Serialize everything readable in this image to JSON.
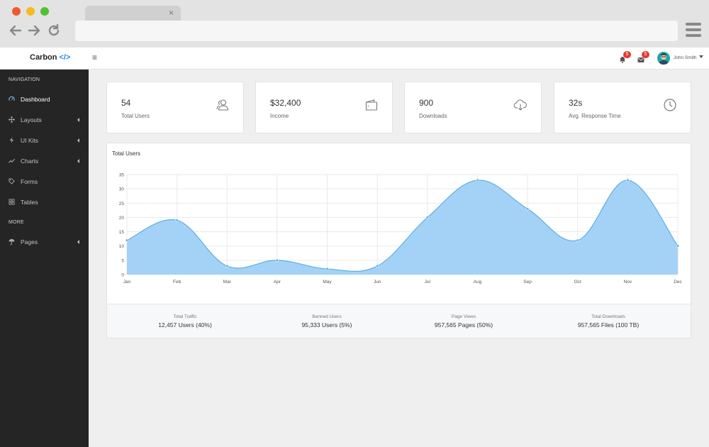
{
  "browser": {
    "tab_close": "×",
    "address": ""
  },
  "header": {
    "brand": "Carbon",
    "brand_code": "</>",
    "hamburger": "≡",
    "notifications_count": "5",
    "messages_count": "5",
    "user_name": "John Smith"
  },
  "sidebar": {
    "headings": [
      "NAVIGATION",
      "MORE"
    ],
    "items": [
      {
        "label": "Dashboard",
        "icon": "dashboard-gauge-icon",
        "active": true,
        "has_submenu": false
      },
      {
        "label": "Layouts",
        "icon": "move-icon",
        "active": false,
        "has_submenu": true
      },
      {
        "label": "UI Kits",
        "icon": "bolt-icon",
        "active": false,
        "has_submenu": true
      },
      {
        "label": "Charts",
        "icon": "line-chart-icon",
        "active": false,
        "has_submenu": true
      },
      {
        "label": "Forms",
        "icon": "tag-icon",
        "active": false,
        "has_submenu": false
      },
      {
        "label": "Tables",
        "icon": "grid-icon",
        "active": false,
        "has_submenu": false
      },
      {
        "label": "Pages",
        "icon": "umbrella-icon",
        "active": false,
        "has_submenu": true
      }
    ]
  },
  "cards": [
    {
      "value": "54",
      "label": "Total Users",
      "icon": "users-icon"
    },
    {
      "value": "$32,400",
      "label": "Income",
      "icon": "wallet-icon"
    },
    {
      "value": "900",
      "label": "Downloads",
      "icon": "cloud-download-icon"
    },
    {
      "value": "32s",
      "label": "Avg. Response Time",
      "icon": "clock-icon"
    }
  ],
  "chart_panel": {
    "title": "Total Users"
  },
  "chart_data": {
    "type": "area",
    "title": "Total Users",
    "categories": [
      "Jan",
      "Feb",
      "Mar",
      "Apr",
      "May",
      "Jun",
      "Jul",
      "Aug",
      "Sep",
      "Oct",
      "Nov",
      "Dec"
    ],
    "values": [
      12,
      19,
      3,
      5,
      2,
      3,
      20,
      33,
      23,
      12,
      33,
      10
    ],
    "y_ticks": [
      0,
      5,
      10,
      15,
      20,
      25,
      30,
      35
    ],
    "ylim": [
      0,
      35
    ],
    "grid": true,
    "fill_color": "#9fd0f5",
    "line_color": "#5aaee6",
    "xlabel": "",
    "ylabel": ""
  },
  "stats": [
    {
      "label": "Total Traffic",
      "value": "12,457 Users (40%)"
    },
    {
      "label": "Banned Users",
      "value": "95,333 Users (5%)"
    },
    {
      "label": "Page Views",
      "value": "957,565 Pages (50%)"
    },
    {
      "label": "Total Downloads",
      "value": "957,565 Files (100 TB)"
    }
  ],
  "colors": {
    "sidebar_bg": "#252525",
    "accent": "#1e88e5",
    "badge": "#e53935",
    "avatar": "#1ca9a5"
  }
}
